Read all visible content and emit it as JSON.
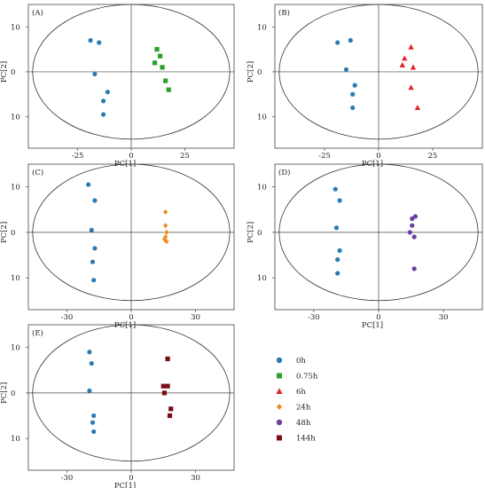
{
  "colors": {
    "0h": "#2a7ab5",
    "0.75h": "#2ca02c",
    "6h": "#e3262b",
    "24h": "#f08c1b",
    "48h": "#6a3fa0",
    "144h": "#7b0d16"
  },
  "legend": {
    "placement": "bottom-right",
    "items": [
      {
        "label": "0h",
        "marker": "circle",
        "color": "#2a7ab5"
      },
      {
        "label": "0.75h",
        "marker": "square",
        "color": "#2ca02c"
      },
      {
        "label": "6h",
        "marker": "triangle",
        "color": "#e3262b"
      },
      {
        "label": "24h",
        "marker": "diamond",
        "color": "#f08c1b"
      },
      {
        "label": "48h",
        "marker": "circle",
        "color": "#6a3fa0"
      },
      {
        "label": "144h",
        "marker": "square",
        "color": "#7b0d16"
      }
    ]
  },
  "chart_data": [
    {
      "type": "scatter",
      "panel": "(A)",
      "xlabel": "PC[1]",
      "ylabel": "PC[2]",
      "xlim": [
        -48,
        48
      ],
      "ylim": [
        -17,
        15
      ],
      "xticks": [
        -25,
        0,
        25
      ],
      "yticks": [
        -10,
        0,
        10
      ],
      "grid": false,
      "ellipse": {
        "rx": 46,
        "ry": 15
      },
      "series": [
        {
          "name": "0h",
          "marker": "circle",
          "x": [
            -19,
            -15,
            -17,
            -11,
            -13,
            -13
          ],
          "y": [
            7,
            6.5,
            -0.5,
            -4.5,
            -6.5,
            -9.5
          ]
        },
        {
          "name": "0.75h",
          "marker": "square",
          "x": [
            12,
            13.5,
            11,
            14.5,
            16,
            17.5
          ],
          "y": [
            5,
            3.5,
            2,
            1,
            -2,
            -4
          ]
        }
      ]
    },
    {
      "type": "scatter",
      "panel": "(B)",
      "xlabel": "PC[1]",
      "ylabel": "PC[2]",
      "xlim": [
        -48,
        48
      ],
      "ylim": [
        -17,
        15
      ],
      "xticks": [
        -25,
        0,
        25
      ],
      "yticks": [
        -10,
        0,
        10
      ],
      "grid": false,
      "ellipse": {
        "rx": 46,
        "ry": 15
      },
      "series": [
        {
          "name": "0h",
          "marker": "circle",
          "x": [
            -19,
            -13,
            -15,
            -11,
            -12,
            -12
          ],
          "y": [
            6.5,
            7,
            0.5,
            -3,
            -5,
            -8
          ]
        },
        {
          "name": "6h",
          "marker": "triangle",
          "x": [
            15,
            12,
            16,
            11,
            15,
            18
          ],
          "y": [
            5.5,
            3,
            1,
            1.5,
            -3.5,
            -8
          ]
        }
      ]
    },
    {
      "type": "scatter",
      "panel": "(C)",
      "xlabel": "PC[1]",
      "ylabel": "PC[2]",
      "xlim": [
        -48,
        48
      ],
      "ylim": [
        -17,
        15
      ],
      "xticks": [
        -30,
        0,
        30
      ],
      "yticks": [
        -10,
        0,
        10
      ],
      "grid": false,
      "ellipse": {
        "rx": 46,
        "ry": 15
      },
      "series": [
        {
          "name": "0h",
          "marker": "circle",
          "x": [
            -20,
            -17,
            -18.5,
            -17,
            -18,
            -17.5
          ],
          "y": [
            10.5,
            7,
            0.5,
            -3.5,
            -6.5,
            -10.5
          ]
        },
        {
          "name": "24h",
          "marker": "diamond",
          "x": [
            16,
            16,
            16.5,
            16,
            15.5,
            16.5
          ],
          "y": [
            4.5,
            1.5,
            0,
            -1,
            -1.5,
            -2
          ]
        }
      ]
    },
    {
      "type": "scatter",
      "panel": "(D)",
      "xlabel": "PC[1]",
      "ylabel": "PC[2]",
      "xlim": [
        -48,
        48
      ],
      "ylim": [
        -17,
        15
      ],
      "xticks": [
        -30,
        0,
        30
      ],
      "yticks": [
        -10,
        0,
        10
      ],
      "grid": false,
      "ellipse": {
        "rx": 46,
        "ry": 15
      },
      "series": [
        {
          "name": "0h",
          "marker": "circle",
          "x": [
            -20,
            -18,
            -19.5,
            -18,
            -19,
            -19
          ],
          "y": [
            9.5,
            7,
            1,
            -4,
            -6,
            -9
          ]
        },
        {
          "name": "48h",
          "marker": "circle",
          "x": [
            15.5,
            17,
            15.5,
            14.5,
            16.5,
            16.5
          ],
          "y": [
            3,
            3.5,
            1.5,
            0,
            -1,
            -8
          ]
        }
      ]
    },
    {
      "type": "scatter",
      "panel": "(E)",
      "xlabel": "PC[1]",
      "ylabel": "PC[2]",
      "xlim": [
        -48,
        48
      ],
      "ylim": [
        -17,
        15
      ],
      "xticks": [
        -30,
        0,
        30
      ],
      "yticks": [
        -10,
        0,
        10
      ],
      "grid": false,
      "ellipse": {
        "rx": 46,
        "ry": 15
      },
      "series": [
        {
          "name": "0h",
          "marker": "circle",
          "x": [
            -19.5,
            -18.5,
            -19.5,
            -17.5,
            -18,
            -17.5
          ],
          "y": [
            9,
            6.5,
            0.5,
            -5,
            -6.5,
            -8.5
          ]
        },
        {
          "name": "144h",
          "marker": "square",
          "x": [
            17,
            15,
            17,
            15.5,
            18.5,
            18
          ],
          "y": [
            7.5,
            1.5,
            1.5,
            0,
            -3.5,
            -5
          ]
        }
      ]
    }
  ]
}
